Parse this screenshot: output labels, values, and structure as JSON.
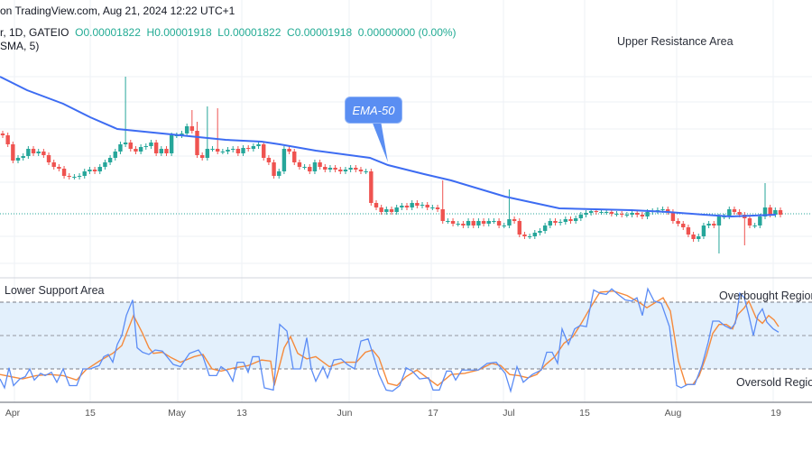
{
  "header": {
    "source_line": "on TradingView.com, Aug 21, 2024 12:22 UTC+1",
    "symbol_line_prefix": "r, 1D, GATEIO",
    "open": "O0.00001822",
    "high": "H0.00001918",
    "low": "L0.00001822",
    "close": "C0.00001918",
    "change": "0.00000000 (0.00%)",
    "indicator_line": "SMA, 5)"
  },
  "annotations": {
    "upper": "Upper Resistance Area",
    "lower": "Lower Support Area",
    "overbought": "Overbought Region",
    "oversold": "Oversold Region",
    "ema_callout": "EMA-50"
  },
  "x_axis": [
    "Apr",
    "15",
    "May",
    "13",
    "Jun",
    "17",
    "Jul",
    "15",
    "Aug",
    "19"
  ],
  "colors": {
    "up": "#26a69a",
    "down": "#ef5350",
    "ema": "#3d6cf2",
    "rsi": "#5b8cf5",
    "rsi_ma": "#f58a3c",
    "band": "#e3f0fc"
  },
  "chart_data": [
    {
      "type": "candlestick",
      "interval": "1D",
      "last_price": 1.918e-05,
      "close": [
        2.358e-05,
        2.308e-05,
        2.218e-05,
        2.233e-05,
        2.243e-05,
        2.283e-05,
        2.258e-05,
        2.268e-05,
        2.248e-05,
        2.208e-05,
        2.183e-05,
        2.173e-05,
        2.133e-05,
        2.128e-05,
        2.128e-05,
        2.133e-05,
        2.158e-05,
        2.168e-05,
        2.158e-05,
        2.183e-05,
        2.208e-05,
        2.233e-05,
        2.268e-05,
        2.308e-05,
        2.318e-05,
        2.283e-05,
        2.268e-05,
        2.293e-05,
        2.298e-05,
        2.318e-05,
        2.258e-05,
        2.283e-05,
        2.258e-05,
        2.358e-05,
        2.358e-05,
        2.368e-05,
        2.408e-05,
        2.383e-05,
        2.248e-05,
        2.233e-05,
        2.283e-05,
        2.283e-05,
        2.268e-05,
        2.268e-05,
        2.278e-05,
        2.283e-05,
        2.258e-05,
        2.288e-05,
        2.283e-05,
        2.298e-05,
        2.308e-05,
        2.233e-05,
        2.208e-05,
        2.133e-05,
        2.158e-05,
        2.283e-05,
        2.268e-05,
        2.208e-05,
        2.183e-05,
        2.183e-05,
        2.158e-05,
        2.208e-05,
        2.183e-05,
        2.168e-05,
        2.178e-05,
        2.168e-05,
        2.158e-05,
        2.168e-05,
        2.178e-05,
        2.168e-05,
        2.158e-05,
        2.158e-05,
        1.983e-05,
        1.958e-05,
        1.933e-05,
        1.948e-05,
        1.933e-05,
        1.958e-05,
        1.968e-05,
        1.958e-05,
        1.983e-05,
        1.968e-05,
        1.973e-05,
        1.958e-05,
        1.958e-05,
        1.948e-05,
        1.883e-05,
        1.883e-05,
        1.868e-05,
        1.868e-05,
        1.858e-05,
        1.883e-05,
        1.858e-05,
        1.883e-05,
        1.868e-05,
        1.883e-05,
        1.883e-05,
        1.858e-05,
        1.858e-05,
        1.893e-05,
        1.883e-05,
        1.808e-05,
        1.798e-05,
        1.798e-05,
        1.818e-05,
        1.828e-05,
        1.858e-05,
        1.883e-05,
        1.873e-05,
        1.878e-05,
        1.893e-05,
        1.883e-05,
        1.898e-05,
        1.918e-05,
        1.928e-05,
        1.938e-05,
        1.933e-05,
        1.933e-05,
        1.933e-05,
        1.923e-05,
        1.923e-05,
        1.918e-05,
        1.918e-05,
        1.928e-05,
        1.918e-05,
        1.908e-05,
        1.933e-05,
        1.938e-05,
        1.943e-05,
        1.948e-05,
        1.933e-05,
        1.883e-05,
        1.868e-05,
        1.848e-05,
        1.808e-05,
        1.783e-05,
        1.798e-05,
        1.858e-05,
        1.868e-05,
        1.858e-05,
        1.908e-05,
        1.908e-05,
        1.948e-05,
        1.933e-05,
        1.918e-05,
        1.898e-05,
        1.858e-05,
        1.858e-05,
        1.908e-05,
        1.958e-05,
        1.918e-05,
        1.943e-05,
        1.918e-05
      ],
      "notable_highs": [
        {
          "index": 24,
          "high": 2.683e-05
        },
        {
          "index": 37,
          "high": 2.498e-05
        },
        {
          "index": 38,
          "high": 2.433e-05
        },
        {
          "index": 40,
          "high": 2.518e-05
        },
        {
          "index": 42,
          "high": 2.508e-05
        },
        {
          "index": 86,
          "high": 2.108e-05
        },
        {
          "index": 99,
          "high": 2.058e-05
        },
        {
          "index": 149,
          "high": 2.093e-05
        }
      ],
      "notable_lows": [
        {
          "index": 140,
          "low": 1.703e-05
        },
        {
          "index": 145,
          "low": 1.748e-05
        }
      ],
      "ema_50": [
        2.683e-05,
        2.608e-05,
        2.533e-05,
        2.458e-05,
        2.393e-05,
        2.383e-05,
        2.358e-05,
        2.333e-05,
        2.323e-05,
        2.308e-05,
        2.273e-05,
        2.233e-05,
        2.193e-05,
        2.143e-05,
        2.108e-05,
        2.018e-05,
        1.953e-05,
        1.943e-05,
        1.933e-05,
        1.918e-05,
        1.908e-05,
        1.918e-05
      ]
    },
    {
      "type": "line",
      "levels": {
        "overbought": 80,
        "middle": 50,
        "oversold": 20
      },
      "series": [
        {
          "values": [
            11,
            3,
            21,
            5,
            11,
            13,
            20,
            10,
            16,
            14,
            17,
            8,
            20,
            5,
            5,
            20,
            20,
            23,
            31,
            33,
            26,
            42,
            50,
            68,
            82,
            39,
            35,
            33,
            37,
            36,
            29,
            24,
            22,
            34,
            37,
            31,
            14,
            14,
            22,
            18,
            9,
            26,
            26,
            17,
            31,
            31,
            3,
            1,
            60,
            54,
            20,
            20,
            48,
            20,
            9,
            22,
            12,
            28,
            29,
            24,
            20,
            45,
            47,
            29,
            15,
            1,
            0,
            5,
            20,
            21,
            18,
            11,
            12,
            1,
            1,
            18,
            18,
            10,
            19,
            19,
            19,
            25,
            26,
            16,
            0,
            22,
            8,
            15,
            19,
            35,
            35,
            25,
            56,
            42,
            56,
            59,
            58,
            91,
            88,
            87,
            92,
            87,
            82,
            81,
            84,
            68,
            92,
            81,
            79,
            58,
            5,
            3,
            6,
            6,
            23,
            44,
            63,
            63,
            59,
            56,
            61,
            88,
            84,
            68,
            50,
            68,
            74,
            62,
            56,
            53
          ]
        },
        {
          "values": [
            15,
            13,
            11,
            14,
            15,
            14,
            10,
            19,
            27,
            34,
            41,
            68,
            52,
            39,
            34,
            35,
            30,
            26,
            31,
            33,
            20,
            18,
            21,
            23,
            28,
            27,
            5,
            39,
            49,
            34,
            29,
            31,
            22,
            26,
            26,
            35,
            37,
            30,
            7,
            5,
            13,
            19,
            11,
            5,
            15,
            16,
            19,
            25,
            23,
            15,
            14,
            12,
            15,
            24,
            31,
            43,
            49,
            62,
            76,
            89,
            90,
            86,
            79,
            75,
            79,
            84,
            72,
            27,
            6,
            6,
            14,
            32,
            52,
            60,
            60,
            56,
            69,
            75,
            81,
            66,
            61,
            68,
            64,
            58
          ]
        }
      ]
    }
  ]
}
